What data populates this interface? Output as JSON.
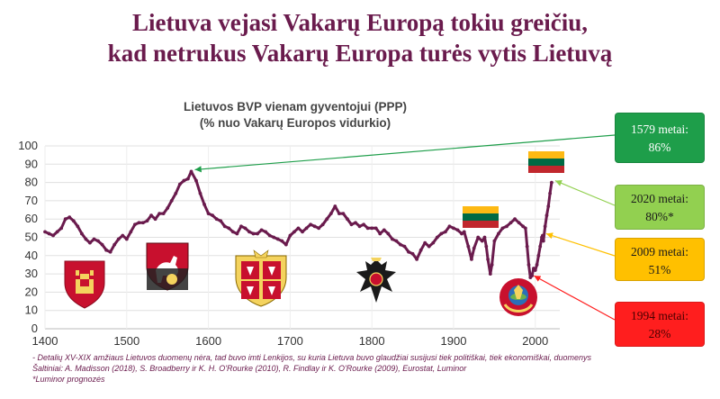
{
  "headline": {
    "line1": "Lietuva vejasi Vakarų Europą tokiu greičiu,",
    "line2": "kad netrukus Vakarų Europa turės vytis Lietuvą"
  },
  "colors": {
    "headline": "#6a1b4d",
    "series": "#6a1b4d",
    "callout_1579": "#1e9e4a",
    "callout_2020": "#92d050",
    "callout_2009": "#ffc000",
    "callout_1994": "#ff1e1e"
  },
  "callouts": [
    {
      "id": "c1579",
      "title": "1579 metai:",
      "value": "86%"
    },
    {
      "id": "c2020",
      "title": "2020 metai:",
      "value": "80%*"
    },
    {
      "id": "c2009",
      "title": "2009 metai:",
      "value": "51%"
    },
    {
      "id": "c1994",
      "title": "1994 metai:",
      "value": "28%"
    }
  ],
  "icons": [
    "columns-of-gediminas-coat-of-arms-icon",
    "vytis-coat-of-arms-icon",
    "commonwealth-coat-of-arms-icon",
    "russian-imperial-eagle-icon",
    "lithuanian-flag-icon",
    "soviet-emblem-icon",
    "lithuanian-flag-icon"
  ],
  "footnote": {
    "line1": "- Detalių XV-XIX amžiaus Lietuvos duomenų nėra, tad buvo imti Lenkijos, su kuria Lietuva buvo glaudžiai susijusi tiek politiškai, tiek ekonomiškai, duomenys",
    "line2": "Šaltiniai: A. Madisson (2018), S. Broadberry ir K. H. O'Rourke (2010), R. Findlay ir K. O'Rourke (2009), Eurostat, Luminor",
    "line3": "*Luminor prognozės"
  },
  "chart_data": {
    "type": "line",
    "title": "Lietuvos BVP vienam gyventojui (PPP)",
    "subtitle": "(% nuo Vakarų Europos vidurkio)",
    "xlabel": "",
    "ylabel": "",
    "xlim": [
      1400,
      2030
    ],
    "ylim": [
      0,
      100
    ],
    "xticks": [
      "1400",
      "1500",
      "1600",
      "1700",
      "1800",
      "1900",
      "2000"
    ],
    "yticks": [
      "0",
      "10",
      "20",
      "30",
      "40",
      "50",
      "60",
      "70",
      "80",
      "90",
      "100"
    ],
    "grid": true,
    "series": [
      {
        "points": [
          [
            1400,
            53
          ],
          [
            1405,
            52
          ],
          [
            1410,
            51
          ],
          [
            1415,
            53
          ],
          [
            1420,
            55
          ],
          [
            1425,
            60
          ],
          [
            1430,
            61
          ],
          [
            1435,
            59
          ],
          [
            1440,
            56
          ],
          [
            1445,
            52
          ],
          [
            1450,
            49
          ],
          [
            1455,
            47
          ],
          [
            1460,
            49
          ],
          [
            1465,
            48
          ],
          [
            1470,
            46
          ],
          [
            1475,
            43
          ],
          [
            1480,
            42
          ],
          [
            1485,
            46
          ],
          [
            1490,
            49
          ],
          [
            1495,
            51
          ],
          [
            1500,
            49
          ],
          [
            1505,
            53
          ],
          [
            1510,
            57
          ],
          [
            1515,
            58
          ],
          [
            1520,
            58
          ],
          [
            1525,
            59
          ],
          [
            1530,
            62
          ],
          [
            1535,
            60
          ],
          [
            1540,
            63
          ],
          [
            1545,
            63
          ],
          [
            1550,
            66
          ],
          [
            1555,
            70
          ],
          [
            1560,
            74
          ],
          [
            1565,
            79
          ],
          [
            1570,
            81
          ],
          [
            1575,
            82
          ],
          [
            1579,
            86
          ],
          [
            1585,
            81
          ],
          [
            1590,
            74
          ],
          [
            1595,
            68
          ],
          [
            1600,
            63
          ],
          [
            1605,
            62
          ],
          [
            1610,
            60
          ],
          [
            1615,
            59
          ],
          [
            1620,
            56
          ],
          [
            1625,
            55
          ],
          [
            1630,
            53
          ],
          [
            1635,
            52
          ],
          [
            1640,
            56
          ],
          [
            1645,
            55
          ],
          [
            1650,
            53
          ],
          [
            1655,
            52
          ],
          [
            1660,
            52
          ],
          [
            1665,
            54
          ],
          [
            1670,
            53
          ],
          [
            1675,
            51
          ],
          [
            1680,
            50
          ],
          [
            1685,
            49
          ],
          [
            1690,
            48
          ],
          [
            1695,
            46
          ],
          [
            1700,
            51
          ],
          [
            1705,
            53
          ],
          [
            1710,
            55
          ],
          [
            1715,
            53
          ],
          [
            1720,
            55
          ],
          [
            1725,
            57
          ],
          [
            1730,
            56
          ],
          [
            1735,
            55
          ],
          [
            1740,
            57
          ],
          [
            1745,
            60
          ],
          [
            1750,
            63
          ],
          [
            1755,
            67
          ],
          [
            1760,
            63
          ],
          [
            1765,
            63
          ],
          [
            1770,
            60
          ],
          [
            1775,
            57
          ],
          [
            1780,
            58
          ],
          [
            1785,
            56
          ],
          [
            1790,
            57
          ],
          [
            1795,
            55
          ],
          [
            1800,
            55
          ],
          [
            1805,
            55
          ],
          [
            1810,
            52
          ],
          [
            1815,
            54
          ],
          [
            1820,
            52
          ],
          [
            1825,
            49
          ],
          [
            1830,
            48
          ],
          [
            1835,
            46
          ],
          [
            1840,
            45
          ],
          [
            1845,
            42
          ],
          [
            1850,
            41
          ],
          [
            1855,
            38
          ],
          [
            1860,
            43
          ],
          [
            1865,
            47
          ],
          [
            1870,
            45
          ],
          [
            1875,
            47
          ],
          [
            1880,
            50
          ],
          [
            1885,
            52
          ],
          [
            1890,
            53
          ],
          [
            1895,
            56
          ],
          [
            1900,
            55
          ],
          [
            1905,
            54
          ],
          [
            1910,
            52
          ],
          [
            1913,
            53
          ],
          [
            1918,
            45
          ],
          [
            1922,
            38
          ],
          [
            1925,
            44
          ],
          [
            1930,
            50
          ],
          [
            1935,
            48
          ],
          [
            1938,
            50
          ],
          [
            1940,
            45
          ],
          [
            1942,
            38
          ],
          [
            1945,
            30
          ],
          [
            1947,
            35
          ],
          [
            1950,
            48
          ],
          [
            1955,
            52
          ],
          [
            1960,
            55
          ],
          [
            1965,
            56
          ],
          [
            1970,
            58
          ],
          [
            1975,
            60
          ],
          [
            1980,
            58
          ],
          [
            1985,
            56
          ],
          [
            1988,
            55
          ],
          [
            1990,
            45
          ],
          [
            1992,
            35
          ],
          [
            1994,
            28
          ],
          [
            1996,
            29
          ],
          [
            1998,
            33
          ],
          [
            2000,
            32
          ],
          [
            2002,
            35
          ],
          [
            2004,
            40
          ],
          [
            2006,
            45
          ],
          [
            2008,
            50
          ],
          [
            2009,
            51
          ],
          [
            2010,
            48
          ],
          [
            2012,
            56
          ],
          [
            2014,
            62
          ],
          [
            2016,
            67
          ],
          [
            2018,
            74
          ],
          [
            2020,
            80
          ]
        ]
      }
    ]
  }
}
